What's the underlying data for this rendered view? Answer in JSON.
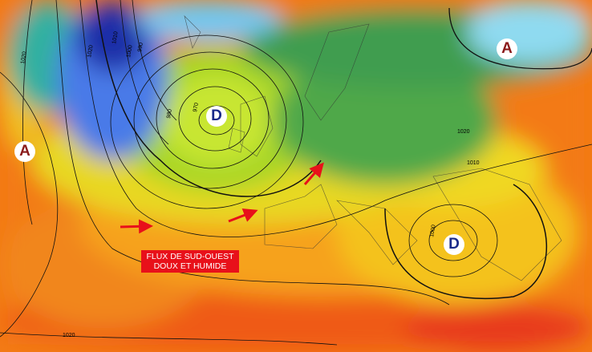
{
  "map": {
    "pressure_centers": [
      {
        "type": "low",
        "label": "D",
        "location": "west of Ireland"
      },
      {
        "type": "low",
        "label": "D",
        "location": "eastern Mediterranean"
      },
      {
        "type": "high",
        "label": "A",
        "location": "mid-Atlantic"
      },
      {
        "type": "high",
        "label": "A",
        "location": "northern Russia"
      }
    ],
    "isobar_labels": [
      "1020",
      "1010",
      "1000",
      "990",
      "980",
      "970",
      "1020",
      "1010",
      "1000",
      "1020"
    ],
    "annotation": {
      "line1": "FLUX DE SUD-OUEST",
      "line2": "DOUX ET HUMIDE"
    },
    "colors": {
      "flow_arrow": "#e8101a",
      "banner": "#e8101a",
      "low_air": "#1a3fbf",
      "warm_air": "#f04010"
    }
  }
}
